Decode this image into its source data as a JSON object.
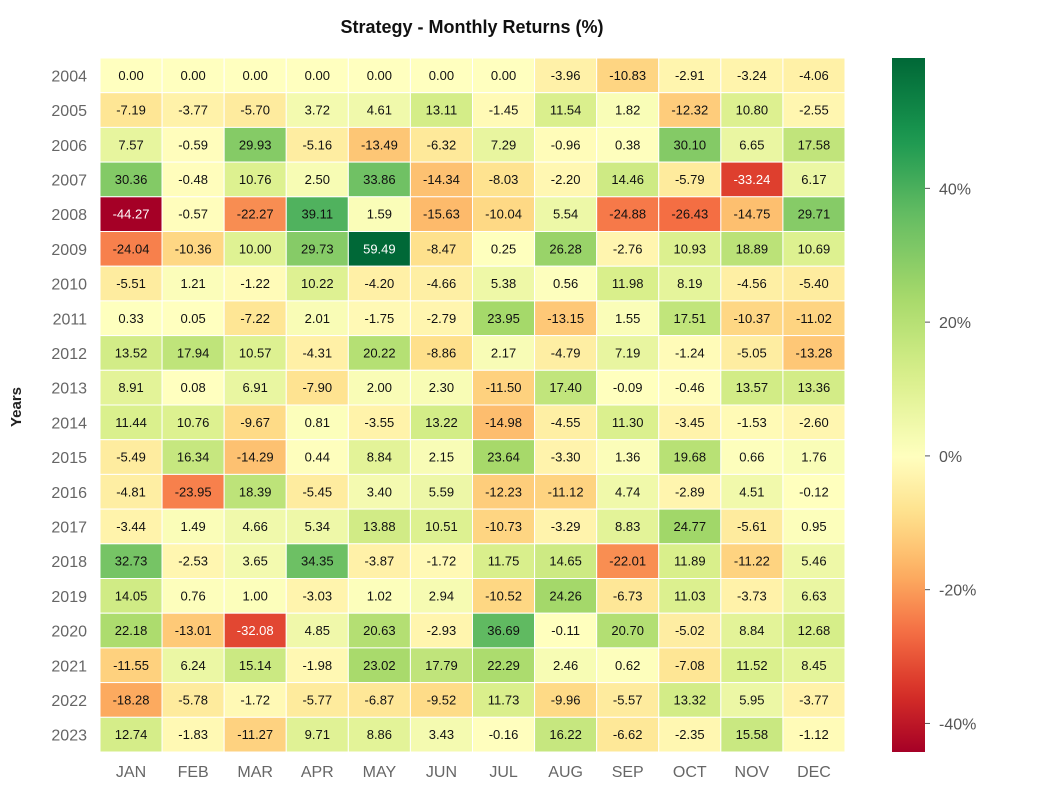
{
  "chart_data": {
    "type": "heatmap",
    "title": "Strategy - Monthly Returns (%)",
    "ylabel": "Years",
    "xlabel": "",
    "x_categories": [
      "JAN",
      "FEB",
      "MAR",
      "APR",
      "MAY",
      "JUN",
      "JUL",
      "AUG",
      "SEP",
      "OCT",
      "NOV",
      "DEC"
    ],
    "y_categories": [
      "2004",
      "2005",
      "2006",
      "2007",
      "2008",
      "2009",
      "2010",
      "2011",
      "2012",
      "2013",
      "2014",
      "2015",
      "2016",
      "2017",
      "2018",
      "2019",
      "2020",
      "2021",
      "2022",
      "2023"
    ],
    "values": [
      [
        0.0,
        0.0,
        0.0,
        0.0,
        0.0,
        0.0,
        0.0,
        -3.96,
        -10.83,
        -2.91,
        -3.24,
        -4.06
      ],
      [
        -7.19,
        -3.77,
        -5.7,
        3.72,
        4.61,
        13.11,
        -1.45,
        11.54,
        1.82,
        -12.32,
        10.8,
        -2.55
      ],
      [
        7.57,
        -0.59,
        29.93,
        -5.16,
        -13.49,
        -6.32,
        7.29,
        -0.96,
        0.38,
        30.1,
        6.65,
        17.58
      ],
      [
        30.36,
        -0.48,
        10.76,
        2.5,
        33.86,
        -14.34,
        -8.03,
        -2.2,
        14.46,
        -5.79,
        -33.24,
        6.17
      ],
      [
        -44.27,
        -0.57,
        -22.27,
        39.11,
        1.59,
        -15.63,
        -10.04,
        5.54,
        -24.88,
        -26.43,
        -14.75,
        29.71
      ],
      [
        -24.04,
        -10.36,
        10.0,
        29.73,
        59.49,
        -8.47,
        0.25,
        26.28,
        -2.76,
        10.93,
        18.89,
        10.69
      ],
      [
        -5.51,
        1.21,
        -1.22,
        10.22,
        -4.2,
        -4.66,
        5.38,
        0.56,
        11.98,
        8.19,
        -4.56,
        -5.4
      ],
      [
        0.33,
        0.05,
        -7.22,
        2.01,
        -1.75,
        -2.79,
        23.95,
        -13.15,
        1.55,
        17.51,
        -10.37,
        -11.02
      ],
      [
        13.52,
        17.94,
        10.57,
        -4.31,
        20.22,
        -8.86,
        2.17,
        -4.79,
        7.19,
        -1.24,
        -5.05,
        -13.28
      ],
      [
        8.91,
        0.08,
        6.91,
        -7.9,
        2.0,
        2.3,
        -11.5,
        17.4,
        -0.09,
        -0.46,
        13.57,
        13.36
      ],
      [
        11.44,
        10.76,
        -9.67,
        0.81,
        -3.55,
        13.22,
        -14.98,
        -4.55,
        11.3,
        -3.45,
        -1.53,
        -2.6
      ],
      [
        -5.49,
        16.34,
        -14.29,
        0.44,
        8.84,
        2.15,
        23.64,
        -3.3,
        1.36,
        19.68,
        0.66,
        1.76
      ],
      [
        -4.81,
        -23.95,
        18.39,
        -5.45,
        3.4,
        5.59,
        -12.23,
        -11.12,
        4.74,
        -2.89,
        4.51,
        -0.12
      ],
      [
        -3.44,
        1.49,
        4.66,
        5.34,
        13.88,
        10.51,
        -10.73,
        -3.29,
        8.83,
        24.77,
        -5.61,
        0.95
      ],
      [
        32.73,
        -2.53,
        3.65,
        34.35,
        -3.87,
        -1.72,
        11.75,
        14.65,
        -22.01,
        11.89,
        -11.22,
        5.46
      ],
      [
        14.05,
        0.76,
        1.0,
        -3.03,
        1.02,
        2.94,
        -10.52,
        24.26,
        -6.73,
        11.03,
        -3.73,
        6.63
      ],
      [
        22.18,
        -13.01,
        -32.08,
        4.85,
        20.63,
        -2.93,
        36.69,
        -0.11,
        20.7,
        -5.02,
        8.84,
        12.68
      ],
      [
        -11.55,
        6.24,
        15.14,
        -1.98,
        23.02,
        17.79,
        22.29,
        2.46,
        0.62,
        -7.08,
        11.52,
        8.45
      ],
      [
        -18.28,
        -5.78,
        -1.72,
        -5.77,
        -6.87,
        -9.52,
        11.73,
        -9.96,
        -5.57,
        13.32,
        5.95,
        -3.77
      ],
      [
        12.74,
        -1.83,
        -11.27,
        9.71,
        8.86,
        3.43,
        -0.16,
        16.22,
        -6.62,
        -2.35,
        15.58,
        -1.12
      ]
    ],
    "colormap": "RdYlGn",
    "value_range": [
      -44.27,
      59.49
    ],
    "colorbar_ticks": [
      {
        "value": 40,
        "label": "40%"
      },
      {
        "value": 20,
        "label": "20%"
      },
      {
        "value": 0,
        "label": "0%"
      },
      {
        "value": -20,
        "label": "-20%"
      },
      {
        "value": -40,
        "label": "-40%"
      }
    ],
    "grid": false,
    "cell_border_color": "#ffffff"
  }
}
